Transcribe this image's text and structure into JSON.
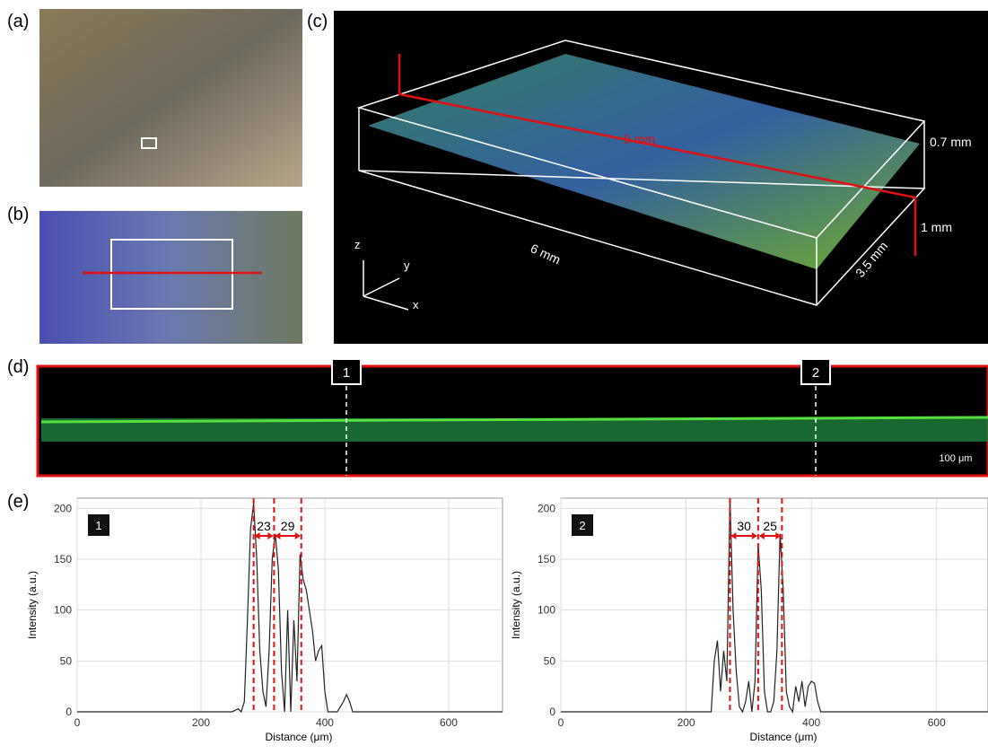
{
  "panels": {
    "labels": [
      "(a)",
      "(b)",
      "(c)",
      "(d)",
      "(e)"
    ],
    "c": {
      "length": "9 mm",
      "thickness": "0.7 mm",
      "depth": "1 mm",
      "width": "6 mm",
      "height": "3.5 mm",
      "axes": [
        "z",
        "y",
        "x"
      ]
    },
    "d": {
      "markers": [
        "1",
        "2"
      ],
      "scale": "100 μm"
    }
  },
  "chart_data": [
    {
      "type": "line",
      "label": "1",
      "x_label": "Distance (μm)",
      "y_label": "Intensity (a.u.)",
      "xlim": [
        0,
        687
      ],
      "ylim": [
        0,
        210
      ],
      "xticks": [
        0,
        200,
        400,
        600
      ],
      "yticks": [
        0,
        50,
        100,
        150,
        200
      ],
      "grid": true,
      "markers": [
        285,
        318,
        362
      ],
      "interval_labels": [
        23,
        29
      ],
      "series": [
        {
          "color": "#222222",
          "x": [
            0,
            250,
            260,
            265,
            270,
            275,
            280,
            285,
            290,
            295,
            300,
            305,
            310,
            315,
            320,
            325,
            330,
            335,
            340,
            345,
            350,
            355,
            360,
            365,
            370,
            375,
            380,
            385,
            390,
            395,
            400,
            405,
            410,
            420,
            430,
            435,
            440,
            445,
            450,
            687
          ],
          "values": [
            0,
            0,
            3,
            0,
            10,
            90,
            180,
            205,
            150,
            60,
            20,
            5,
            60,
            150,
            175,
            140,
            40,
            0,
            100,
            0,
            90,
            30,
            155,
            130,
            120,
            100,
            80,
            50,
            60,
            65,
            20,
            0,
            0,
            0,
            10,
            17,
            10,
            0,
            0,
            0
          ]
        }
      ]
    },
    {
      "type": "line",
      "label": "2",
      "x_label": "Distance (μm)",
      "y_label": "Intensity (a.u.)",
      "xlim": [
        0,
        682
      ],
      "ylim": [
        0,
        210
      ],
      "xticks": [
        0,
        200,
        400,
        600
      ],
      "yticks": [
        0,
        50,
        100,
        150,
        200
      ],
      "grid": true,
      "markers": [
        270,
        315,
        353
      ],
      "interval_labels": [
        30,
        25
      ],
      "series": [
        {
          "color": "#222222",
          "x": [
            0,
            240,
            245,
            250,
            255,
            260,
            265,
            270,
            275,
            280,
            285,
            290,
            295,
            300,
            305,
            310,
            315,
            320,
            325,
            330,
            335,
            340,
            345,
            350,
            355,
            360,
            365,
            370,
            375,
            380,
            385,
            390,
            395,
            400,
            405,
            410,
            415,
            420,
            682
          ],
          "values": [
            0,
            0,
            50,
            70,
            20,
            60,
            30,
            210,
            100,
            40,
            5,
            0,
            10,
            30,
            0,
            30,
            165,
            120,
            20,
            0,
            0,
            10,
            60,
            175,
            120,
            20,
            5,
            0,
            25,
            10,
            30,
            5,
            25,
            30,
            28,
            10,
            0,
            0,
            0
          ]
        }
      ]
    }
  ]
}
